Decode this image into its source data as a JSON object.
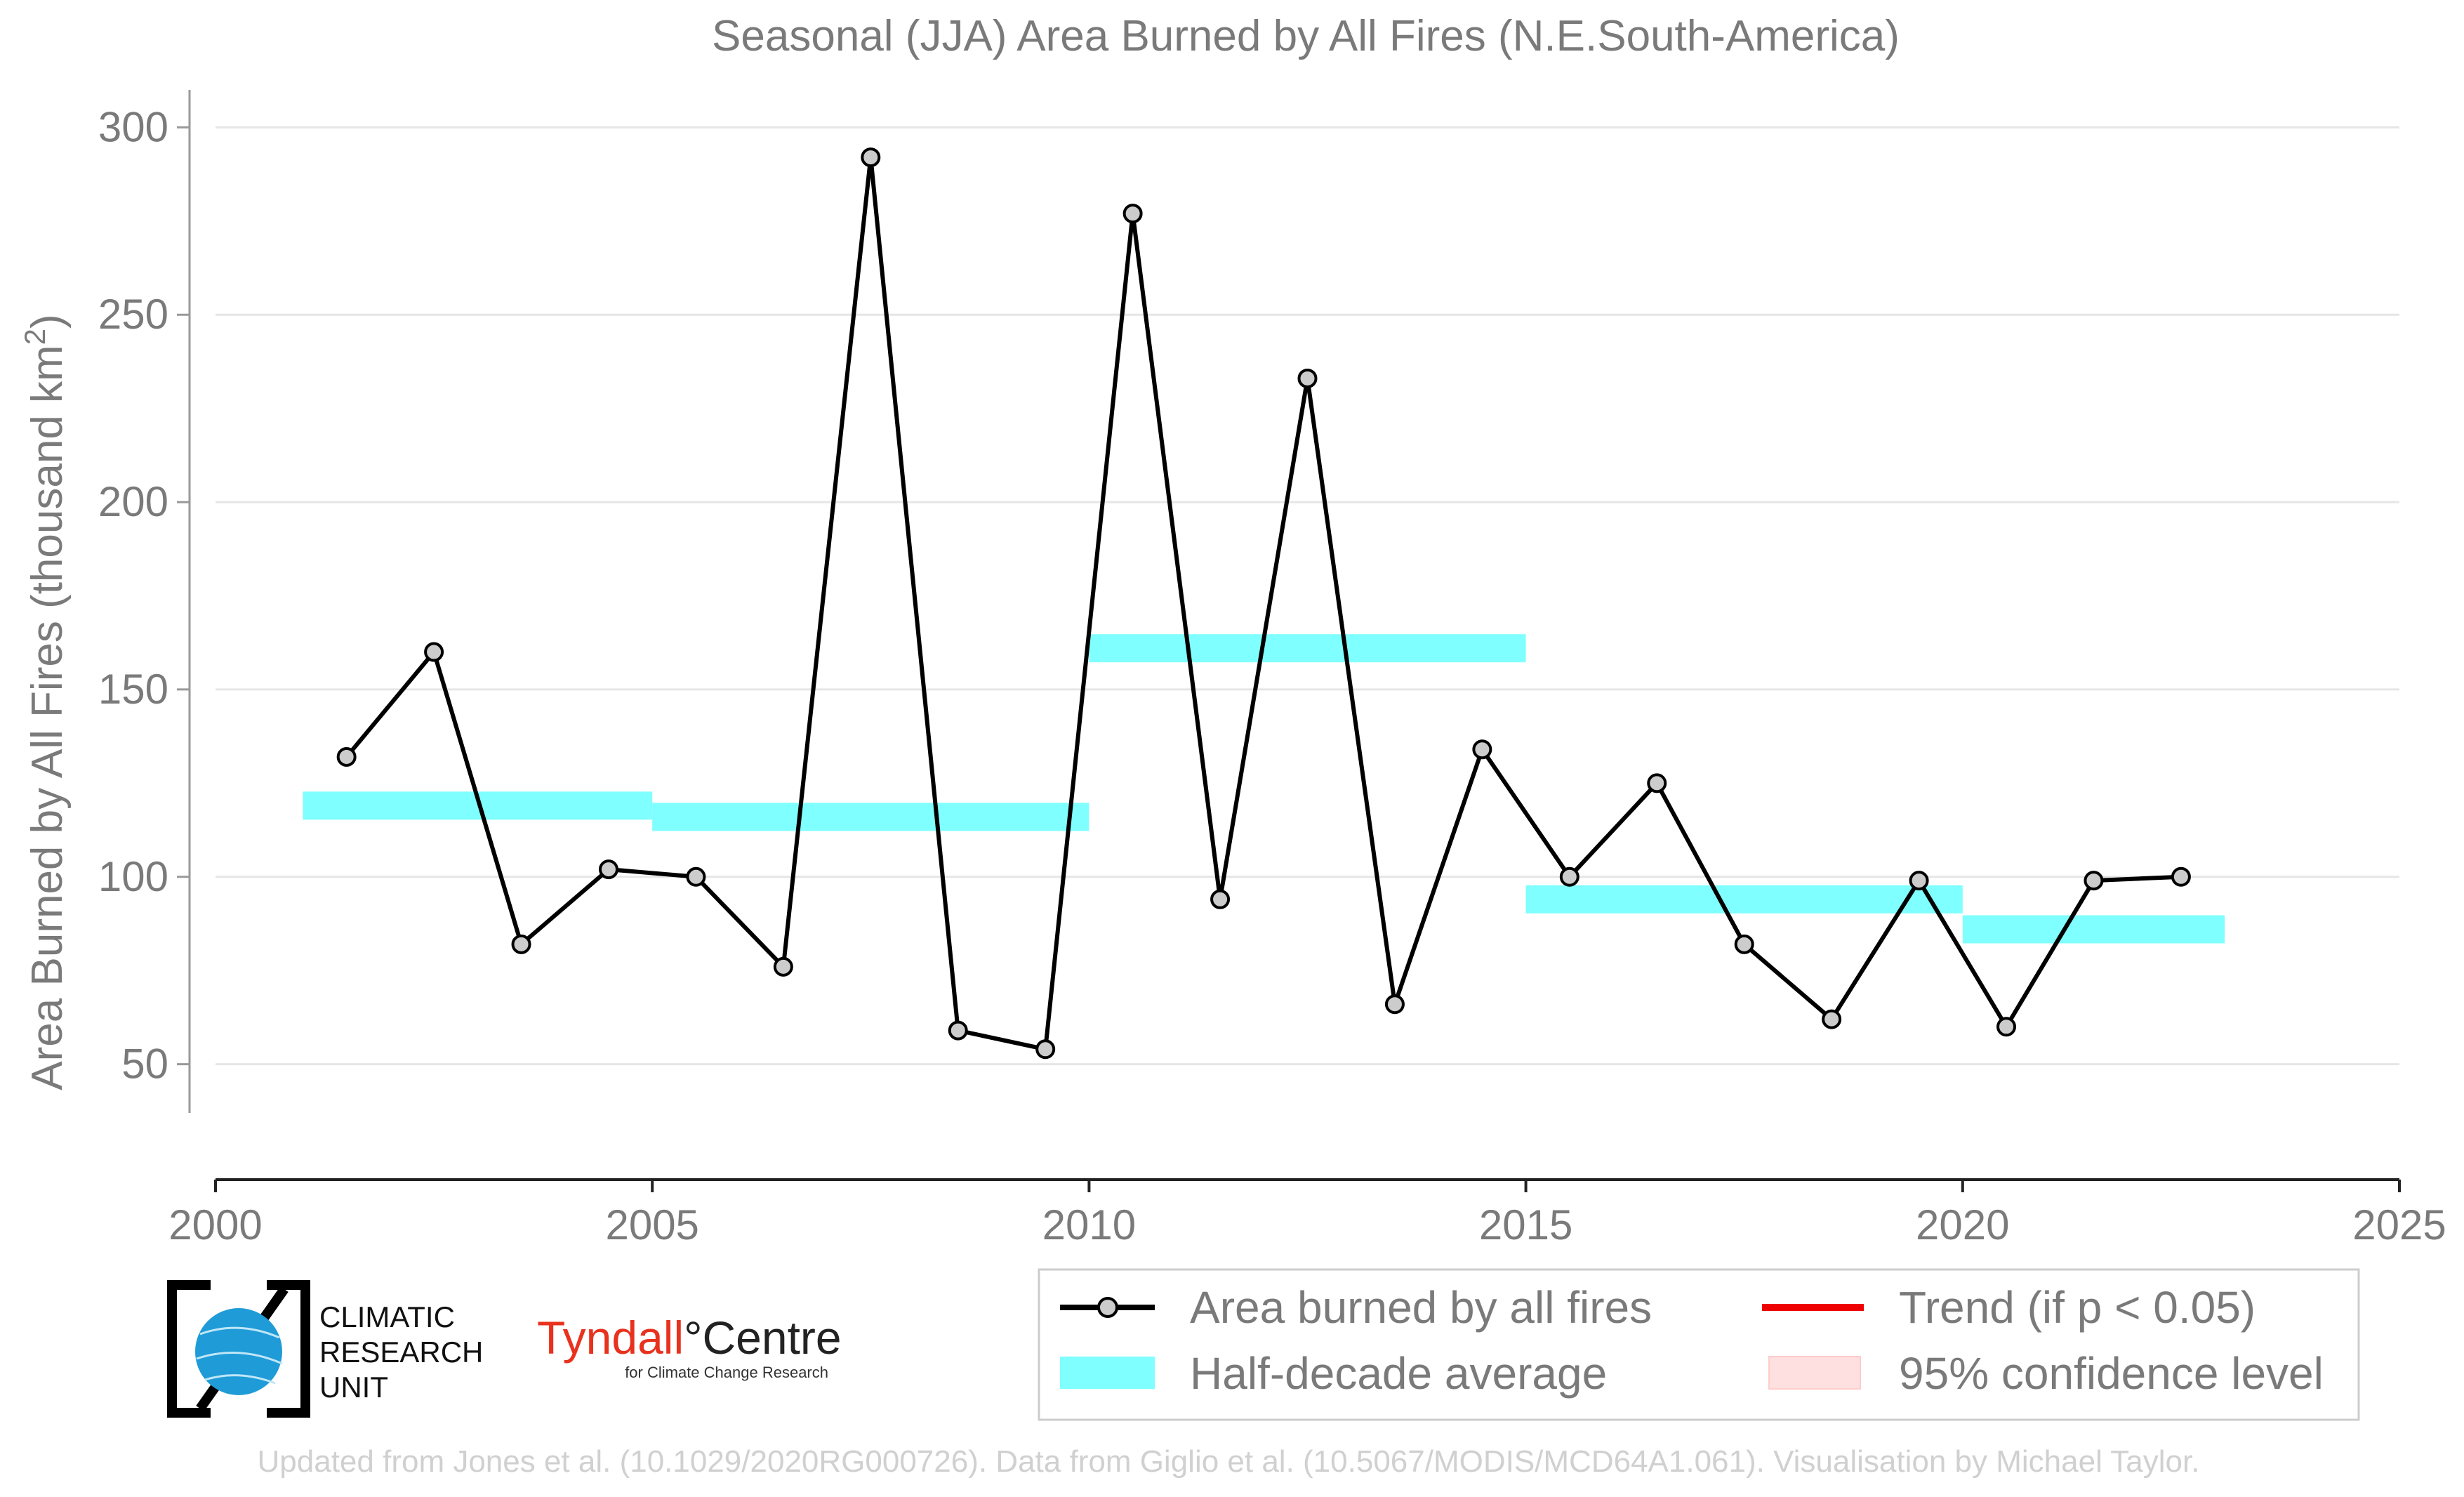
{
  "chart_data": {
    "type": "line",
    "title": "Seasonal (JJA) Area Burned by All Fires (N.E.South-America)",
    "xlabel": "",
    "ylabel": "Area Burned by All Fires (thousand km²)",
    "ylabel_main": "Area Burned by All Fires (thousand km",
    "ylabel_sup": "2",
    "ylabel_end": ")",
    "xlim": [
      2000,
      2025
    ],
    "ylim": [
      37,
      310
    ],
    "xticks": [
      2000,
      2005,
      2010,
      2015,
      2020,
      2025
    ],
    "yticks": [
      50,
      100,
      150,
      200,
      250,
      300
    ],
    "grid": "horizontal",
    "series": [
      {
        "name": "Area burned by all fires",
        "color": "#000000",
        "marker_fill": "#cccccc",
        "x": [
          2001.5,
          2002.5,
          2003.5,
          2004.5,
          2005.5,
          2006.5,
          2007.5,
          2008.5,
          2009.5,
          2010.5,
          2011.5,
          2012.5,
          2013.5,
          2014.5,
          2015.5,
          2016.5,
          2017.5,
          2018.5,
          2019.5,
          2020.5,
          2021.5,
          2022.5
        ],
        "y": [
          132,
          160,
          82,
          102,
          100,
          76,
          292,
          59,
          54,
          277,
          94,
          233,
          66,
          134,
          100,
          125,
          82,
          62,
          99,
          60,
          99,
          100
        ]
      }
    ],
    "half_decade_average": {
      "name": "Half-decade average",
      "color": "#7fffff",
      "segments": [
        {
          "x0": 2001,
          "x1": 2005,
          "y": 119
        },
        {
          "x0": 2005,
          "x1": 2010,
          "y": 116
        },
        {
          "x0": 2010,
          "x1": 2015,
          "y": 161
        },
        {
          "x0": 2015,
          "x1": 2020,
          "y": 94
        },
        {
          "x0": 2020,
          "x1": 2023,
          "y": 86
        }
      ]
    },
    "legend": {
      "placement": "bottom-right",
      "entries": [
        {
          "label": "Area burned by all fires",
          "kind": "line-marker",
          "color": "#000000"
        },
        {
          "label": "Trend (if p < 0.05)",
          "kind": "line",
          "color": "#ee0000"
        },
        {
          "label": "Half-decade average",
          "kind": "band",
          "color": "#7fffff"
        },
        {
          "label": "95% confidence level",
          "kind": "patch",
          "color": "#ffe0e0"
        }
      ]
    }
  },
  "logos": {
    "cru_line1": "CLIMATIC",
    "cru_line2": "RESEARCH",
    "cru_line3": "UNIT",
    "tyndall_name": "Tyndall",
    "tyndall_suffix": "°Centre",
    "tyndall_tagline": "for Climate Change Research",
    "tyndall_color": "#e8321e",
    "cru_globe_color": "#1f9bd7"
  },
  "footer": "Updated from Jones et al. (10.1029/2020RG000726). Data from Giglio et al. (10.5067/MODIS/MCD64A1.061). Visualisation by Michael Taylor."
}
